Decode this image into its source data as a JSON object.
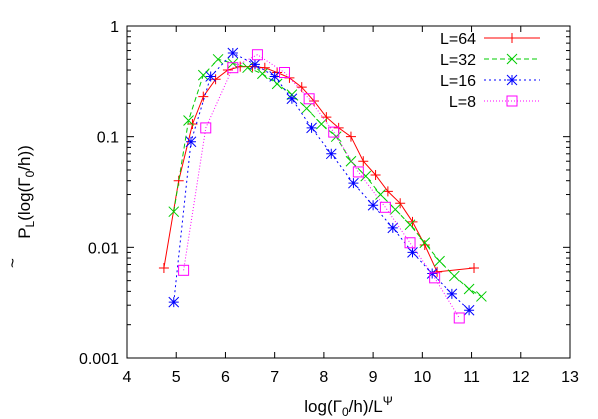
{
  "chart_data": {
    "type": "line",
    "xlabel": {
      "main": "log(Γ",
      "sub": "0",
      "mid": "/h)/L",
      "sup": "Ψ"
    },
    "ylabel": {
      "tilde": "~",
      "main": "P",
      "sub": "L",
      "rest1": "(log(Γ",
      "sub2": "0",
      "rest2": "/h))"
    },
    "xlim": [
      4,
      13
    ],
    "ylim": [
      0.001,
      1
    ],
    "yscale": "log",
    "xticks": [
      "4",
      "5",
      "6",
      "7",
      "8",
      "9",
      "10",
      "11",
      "12",
      "13"
    ],
    "yticks": [
      "0.001",
      "0.01",
      "0.1",
      "1"
    ],
    "legend_position": "top-right",
    "series": [
      {
        "name": "L=64",
        "color": "#ff0000",
        "marker": "plus",
        "dash": "",
        "x": [
          4.75,
          5.05,
          5.33,
          5.55,
          5.8,
          6.05,
          6.3,
          6.55,
          6.8,
          7.05,
          7.3,
          7.55,
          7.8,
          8.05,
          8.3,
          8.55,
          8.8,
          9.05,
          9.3,
          9.55,
          9.8,
          10.05,
          10.3,
          11.05
        ],
        "y": [
          0.0065,
          0.04,
          0.13,
          0.23,
          0.33,
          0.4,
          0.43,
          0.43,
          0.42,
          0.38,
          0.34,
          0.28,
          0.21,
          0.15,
          0.12,
          0.1,
          0.06,
          0.045,
          0.032,
          0.025,
          0.017,
          0.0105,
          0.006,
          0.0065
        ]
      },
      {
        "name": "L=32",
        "color": "#00cc00",
        "marker": "x",
        "dash": "5,3",
        "x": [
          4.95,
          5.25,
          5.55,
          5.85,
          6.15,
          6.45,
          6.75,
          7.05,
          7.35,
          7.65,
          7.95,
          8.25,
          8.55,
          8.85,
          9.15,
          9.45,
          9.75,
          10.05,
          10.35,
          10.65,
          10.95,
          11.2
        ],
        "y": [
          0.021,
          0.14,
          0.36,
          0.5,
          0.46,
          0.42,
          0.37,
          0.3,
          0.24,
          0.18,
          0.13,
          0.1,
          0.06,
          0.044,
          0.03,
          0.022,
          0.016,
          0.011,
          0.0075,
          0.0055,
          0.0042,
          0.0036
        ]
      },
      {
        "name": "L=16",
        "color": "#0000ff",
        "marker": "star",
        "dash": "2,3",
        "x": [
          4.95,
          5.3,
          5.7,
          6.15,
          6.6,
          7.0,
          7.35,
          7.75,
          8.15,
          8.6,
          9.0,
          9.4,
          9.8,
          10.2,
          10.6,
          10.95
        ],
        "y": [
          0.0032,
          0.09,
          0.35,
          0.57,
          0.45,
          0.35,
          0.22,
          0.12,
          0.07,
          0.038,
          0.024,
          0.015,
          0.009,
          0.0058,
          0.0038,
          0.0027
        ]
      },
      {
        "name": "L=8",
        "color": "#ff00ff",
        "marker": "square",
        "dash": "1,2",
        "x": [
          5.15,
          5.6,
          6.15,
          6.65,
          7.2,
          7.7,
          8.2,
          8.7,
          9.25,
          9.75,
          10.25,
          10.75
        ],
        "y": [
          0.0062,
          0.12,
          0.42,
          0.55,
          0.38,
          0.22,
          0.11,
          0.048,
          0.023,
          0.011,
          0.0053,
          0.0023
        ]
      }
    ]
  }
}
